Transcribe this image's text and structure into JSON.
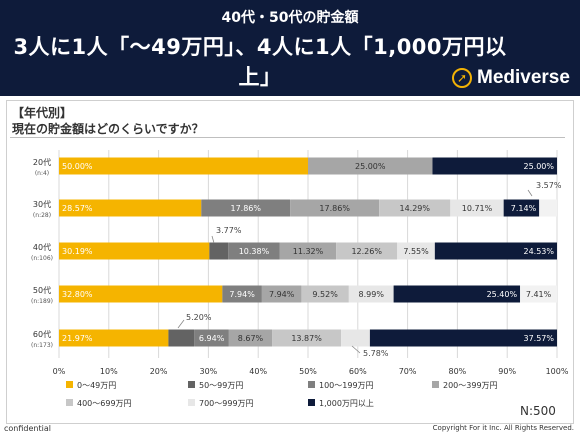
{
  "header": {
    "subtitle": "40代・50代の貯金額",
    "title": "3人に1人「～49万円」、4人に1人「1,000万円以上」",
    "brand": "Mediverse"
  },
  "section": {
    "tag": "【年代別】",
    "question": "現在の貯金額はどのくらいですか？"
  },
  "footer": {
    "confidential": "confidential",
    "copyright": "Copyright For it Inc. All Rights Reserved.",
    "n_label": "N:500"
  },
  "chart_data": {
    "type": "bar",
    "orientation": "horizontal",
    "stacked": true,
    "categories": [
      "20代",
      "30代",
      "40代",
      "50代",
      "60代"
    ],
    "category_notes": [
      "(n:4)",
      "(n:28)",
      "(n:106)",
      "(n:189)",
      "(n:173)"
    ],
    "xlim": [
      0,
      100
    ],
    "x_ticks": [
      "0%",
      "10%",
      "20%",
      "30%",
      "40%",
      "50%",
      "60%",
      "70%",
      "80%",
      "90%",
      "100%"
    ],
    "grid": true,
    "legend_position": "bottom",
    "series": [
      {
        "name": "0～49万円",
        "color": "#f5b400",
        "values": [
          50.0,
          28.57,
          30.19,
          32.8,
          21.97
        ],
        "labels": [
          "50.00%",
          "28.57%",
          "30.19%",
          "32.80%",
          "21.97%"
        ]
      },
      {
        "name": "50～99万円",
        "color": "#636363",
        "values": [
          0,
          0,
          3.77,
          0,
          5.2
        ],
        "labels": [
          "",
          "",
          "3.77%",
          "",
          "5.20%"
        ]
      },
      {
        "name": "100～199万円",
        "color": "#7f7f7f",
        "values": [
          0,
          17.86,
          10.38,
          7.94,
          6.94
        ],
        "labels": [
          "",
          "17.86%",
          "10.38%",
          "7.94%",
          "6.94%"
        ]
      },
      {
        "name": "200～399万円",
        "color": "#a6a6a6",
        "values": [
          25.0,
          17.86,
          11.32,
          7.94,
          8.67
        ],
        "labels": [
          "25.00%",
          "17.86%",
          "11.32%",
          "7.94%",
          "8.67%"
        ]
      },
      {
        "name": "400～699万円",
        "color": "#c7c7c7",
        "values": [
          0,
          14.29,
          12.26,
          9.52,
          13.87
        ],
        "labels": [
          "",
          "14.29%",
          "12.26%",
          "9.52%",
          "13.87%"
        ]
      },
      {
        "name": "700～999万円",
        "color": "#e7e7e7",
        "values": [
          0,
          10.71,
          7.55,
          8.99,
          5.78
        ],
        "labels": [
          "",
          "10.71%",
          "7.55%",
          "8.99%",
          "5.78%"
        ]
      },
      {
        "name": "1,000万円以上",
        "color": "#0e1b3a",
        "values": [
          25.0,
          7.14,
          24.53,
          25.4,
          37.57
        ],
        "labels": [
          "25.00%",
          "7.14%",
          "24.53%",
          "25.40%",
          "37.57%"
        ]
      },
      {
        "name": "",
        "color": "#f2f2f2",
        "values": [
          0,
          3.57,
          0,
          7.41,
          0
        ],
        "labels": [
          "",
          "3.57%",
          "",
          "7.41%",
          ""
        ]
      }
    ],
    "legend": [
      "0～49万円",
      "50～99万円",
      "100～199万円",
      "200～399万円",
      "400～699万円",
      "700～999万円",
      "1,000万円以上"
    ]
  }
}
